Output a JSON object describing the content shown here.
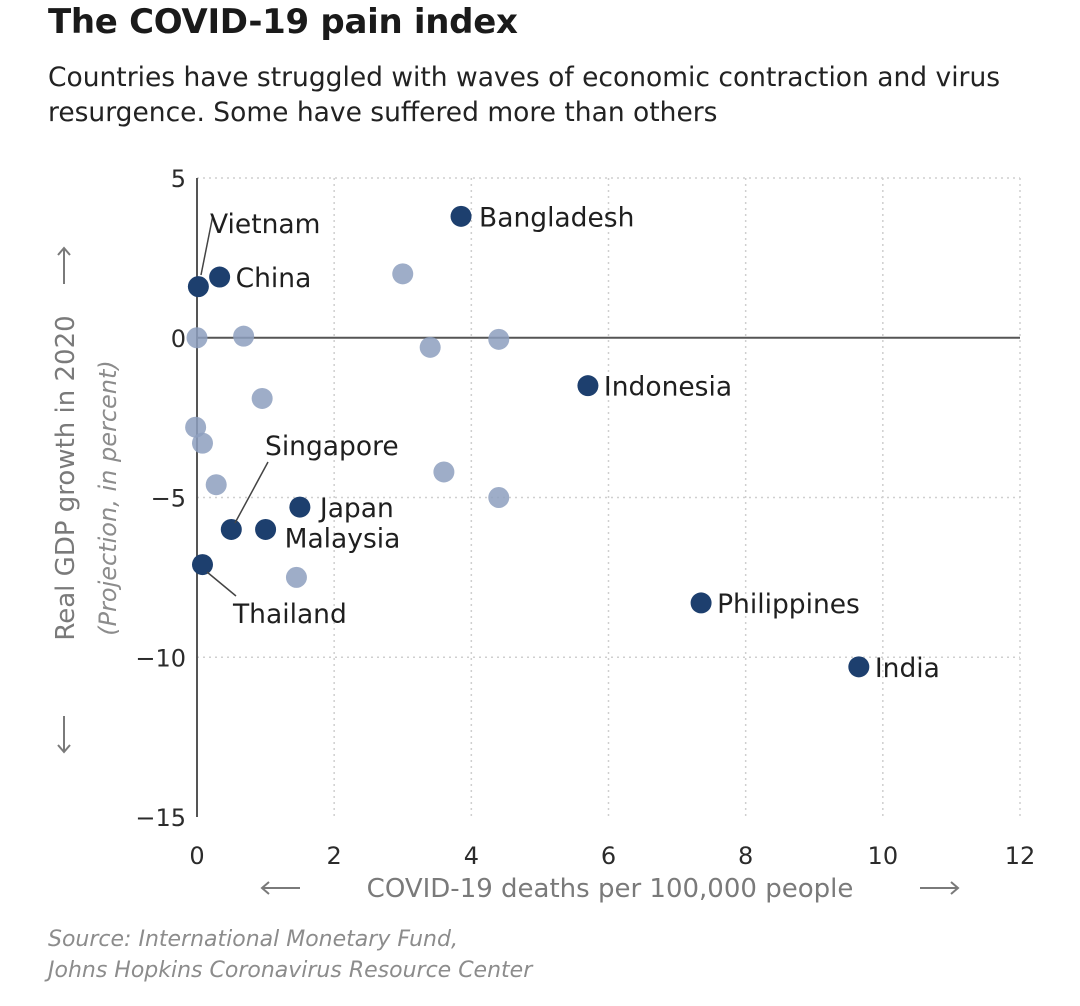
{
  "header": {
    "title": "The COVID-19 pain index",
    "subtitle": "Countries have struggled with waves of economic contraction and virus resurgence. Some have suffered more than others"
  },
  "source": {
    "line1": "Source: International Monetary Fund,",
    "line2": "Johns Hopkins Coronavirus Resource Center"
  },
  "chart_data": {
    "type": "scatter",
    "xlabel": "COVID-19 deaths per 100,000 people",
    "ylabel": "Real GDP growth in 2020",
    "ylabel_sub": "(Projection, in percent)",
    "xlim": [
      0,
      12
    ],
    "ylim": [
      -15,
      5
    ],
    "xticks": [
      0,
      2,
      4,
      6,
      8,
      10,
      12
    ],
    "yticks": [
      5,
      0,
      -5,
      -10,
      -15
    ],
    "ytick_labels": [
      "5",
      "0",
      "−5",
      "−10",
      "−15"
    ],
    "grid": true,
    "colors": {
      "highlight": "#1d3f6e",
      "other": "#8d9fbe",
      "axis": "#555555",
      "grid": "#cfcfcf"
    },
    "highlighted": [
      {
        "name": "Bangladesh",
        "x": 3.85,
        "y": 3.8
      },
      {
        "name": "Vietnam",
        "x": 0.02,
        "y": 1.6
      },
      {
        "name": "China",
        "x": 0.33,
        "y": 1.9
      },
      {
        "name": "Indonesia",
        "x": 5.7,
        "y": -1.5
      },
      {
        "name": "Japan",
        "x": 1.5,
        "y": -5.3
      },
      {
        "name": "Singapore",
        "x": 0.5,
        "y": -6.0
      },
      {
        "name": "Malaysia",
        "x": 1.0,
        "y": -6.0
      },
      {
        "name": "Thailand",
        "x": 0.08,
        "y": -7.1
      },
      {
        "name": "Philippines",
        "x": 7.35,
        "y": -8.3
      },
      {
        "name": "India",
        "x": 9.65,
        "y": -10.3
      }
    ],
    "others": [
      {
        "x": 3.0,
        "y": 2.0
      },
      {
        "x": 0.0,
        "y": 0.0
      },
      {
        "x": 0.68,
        "y": 0.05
      },
      {
        "x": 3.4,
        "y": -0.3
      },
      {
        "x": 4.4,
        "y": -0.05
      },
      {
        "x": 0.95,
        "y": -1.9
      },
      {
        "x": -0.02,
        "y": -2.8
      },
      {
        "x": 0.08,
        "y": -3.3
      },
      {
        "x": 0.28,
        "y": -4.6
      },
      {
        "x": 3.6,
        "y": -4.2
      },
      {
        "x": 4.4,
        "y": -5.0
      },
      {
        "x": 1.45,
        "y": -7.5
      }
    ]
  }
}
